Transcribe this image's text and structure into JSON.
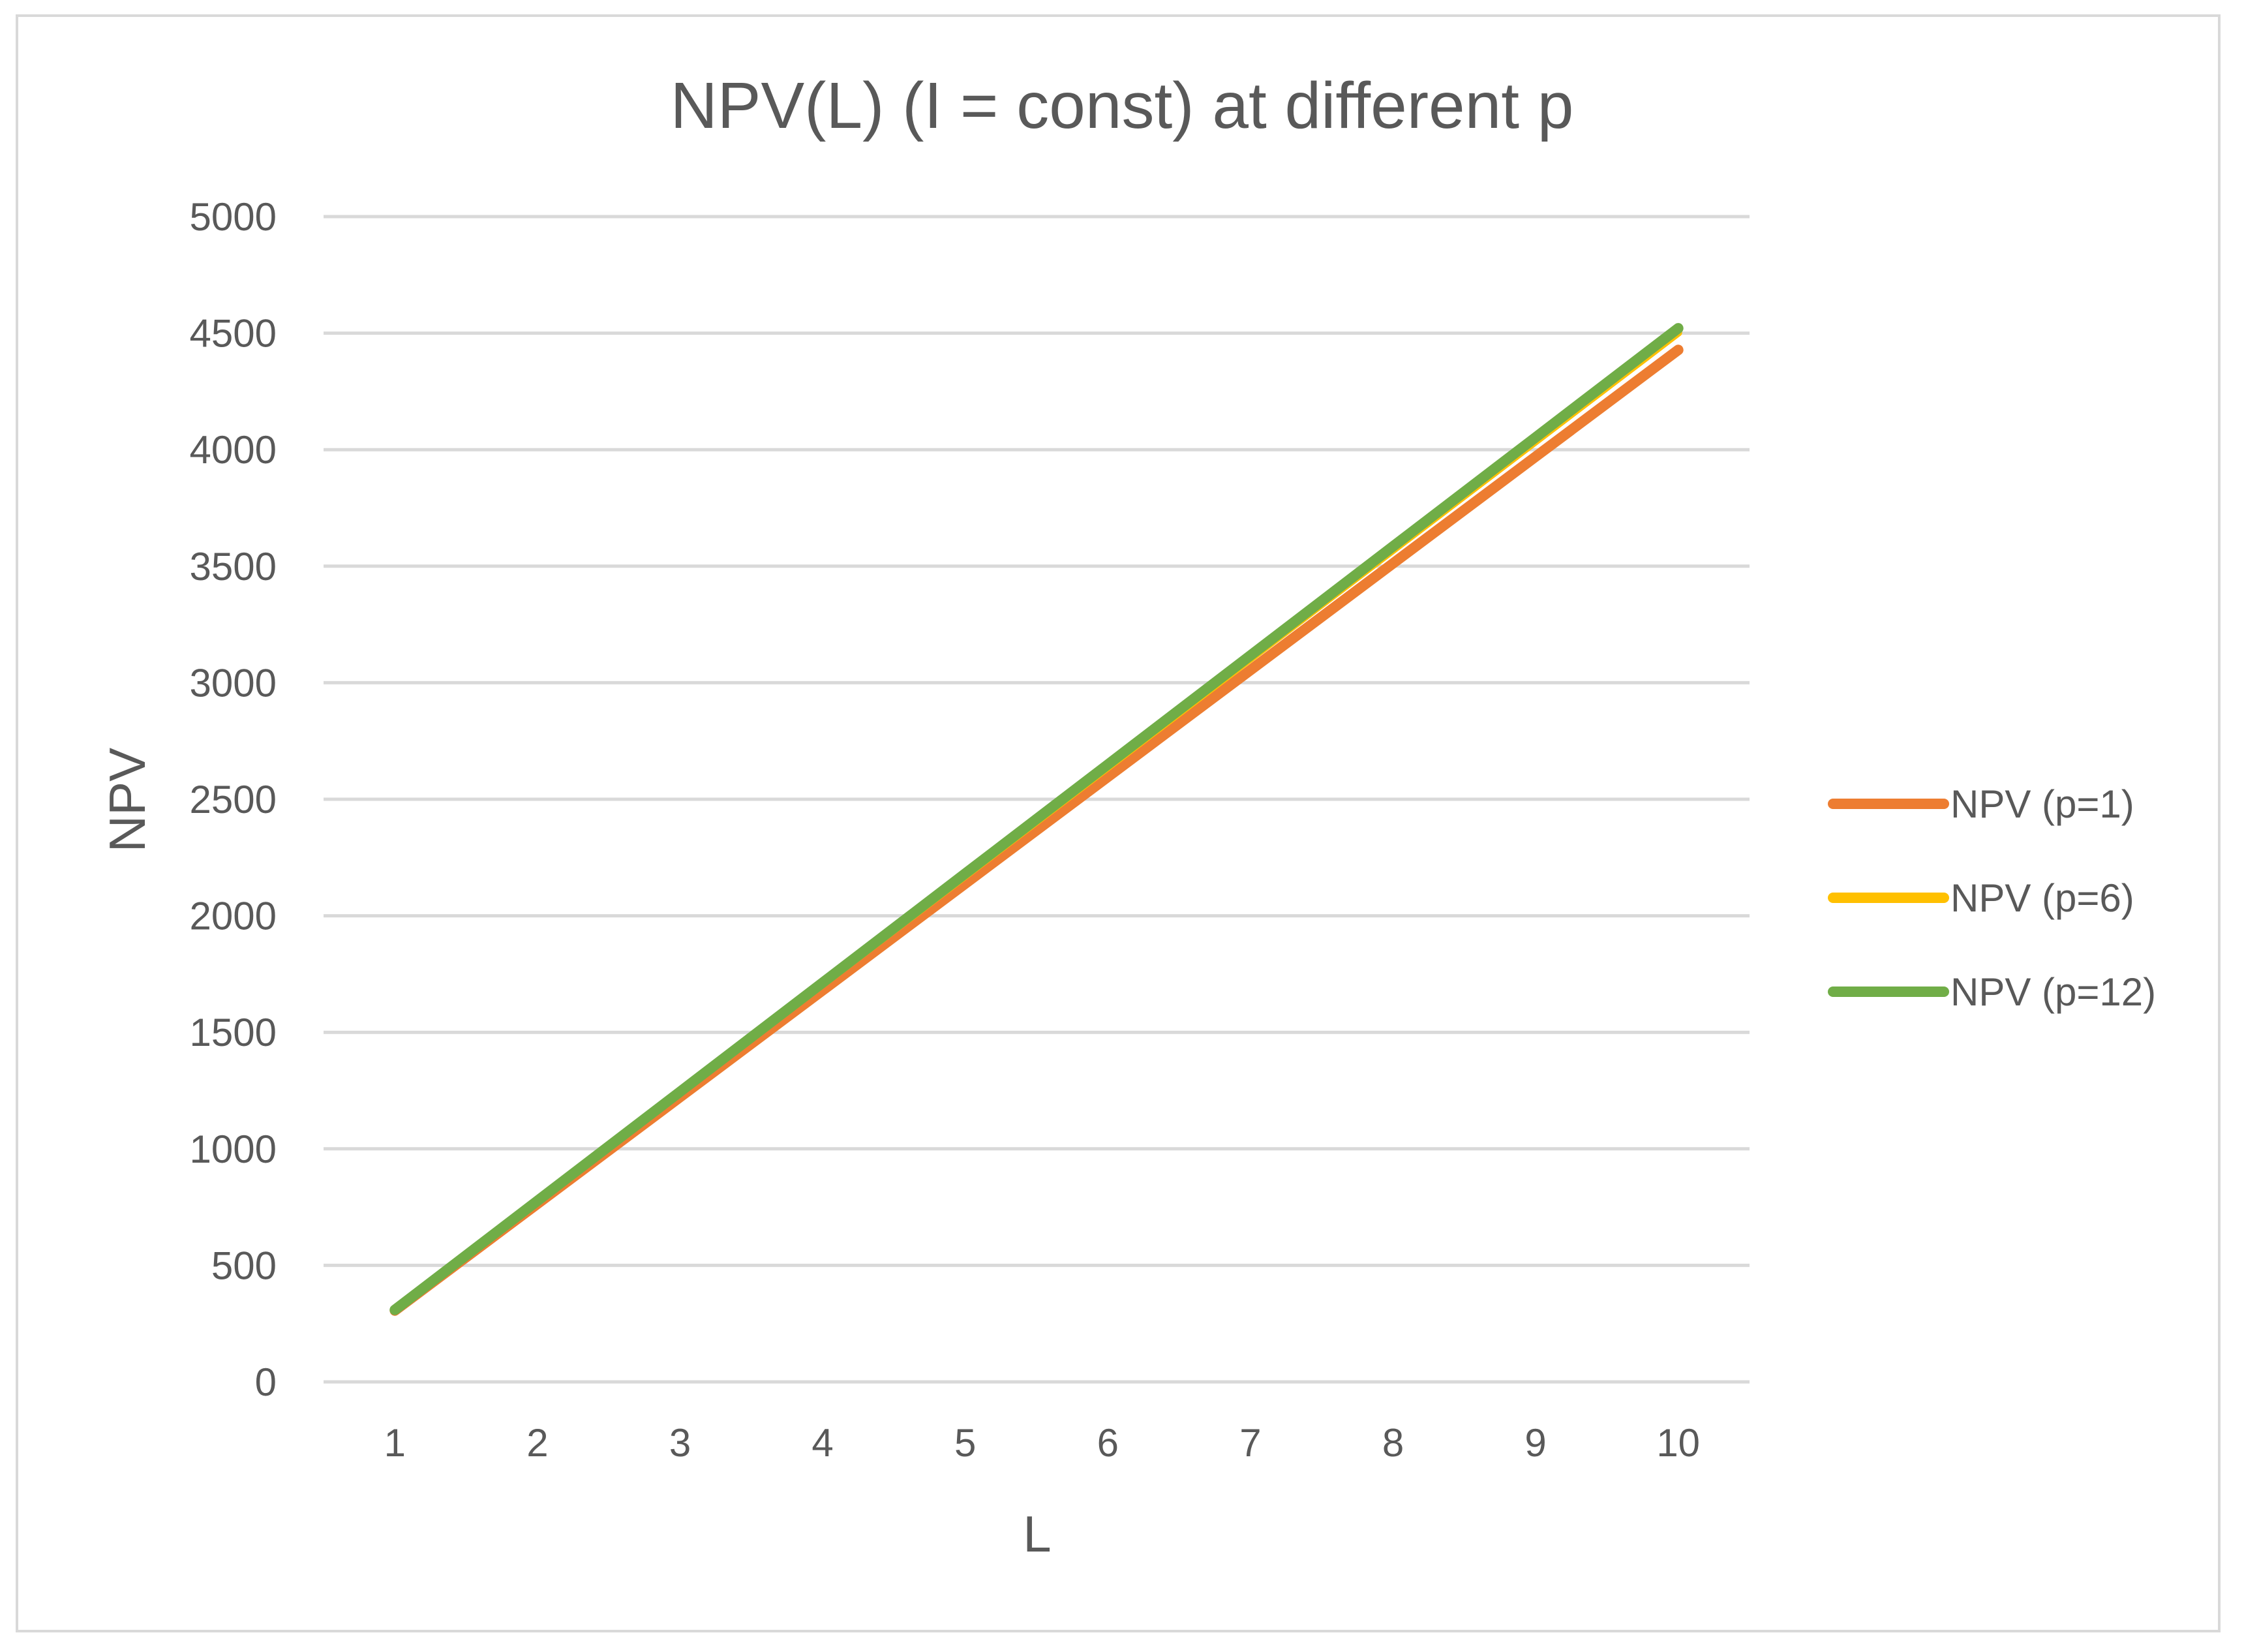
{
  "chart_data": {
    "type": "line",
    "title": "NPV(L) (I = const) at different p",
    "xlabel": "L",
    "ylabel": "NPV",
    "x": [
      1,
      2,
      3,
      4,
      5,
      6,
      7,
      8,
      9,
      10
    ],
    "ylim": [
      0,
      5000
    ],
    "yticks": [
      0,
      500,
      1000,
      1500,
      2000,
      2500,
      3000,
      3500,
      4000,
      4500,
      5000
    ],
    "grid": true,
    "legend_position": "right",
    "series": [
      {
        "name": "NPV (p=1)",
        "color": "#ED7D31",
        "values": [
          306,
          764,
          1222,
          1680,
          2138,
          2596,
          3054,
          3512,
          3970,
          4428
        ]
      },
      {
        "name": "NPV (p=6)",
        "color": "#FFC000",
        "values": [
          308,
          774,
          1240,
          1706,
          2172,
          2638,
          3104,
          3570,
          4036,
          4502
        ]
      },
      {
        "name": "NPV (p=12)",
        "color": "#70AD47",
        "values": [
          309,
          777,
          1245,
          1713,
          2181,
          2649,
          3117,
          3585,
          4053,
          4521
        ]
      }
    ]
  }
}
